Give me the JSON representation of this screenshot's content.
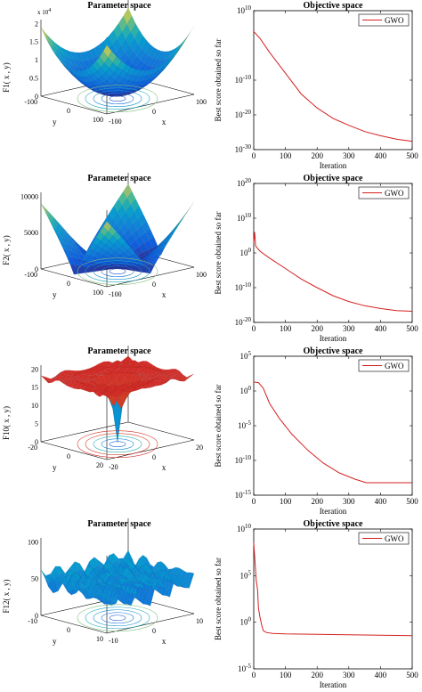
{
  "chart_data": [
    {
      "type": "surface",
      "title": "Parameter space",
      "zlabel": "F1( x , y)",
      "xlabel": "x",
      "ylabel": "y",
      "zticks": [
        "0",
        "0.5",
        "1",
        "1.5",
        "2"
      ],
      "zexp": "x 10",
      "zexp_power": "4",
      "xticks": [
        "-100",
        "0",
        "100"
      ],
      "yticks": [
        "-100",
        "0",
        "100"
      ]
    },
    {
      "type": "line",
      "title": "Objective space",
      "xlabel": "Iteration",
      "ylabel": "Best score obtained so far",
      "yscale": "log",
      "ylim_exp": [
        -30,
        10
      ],
      "ytick_exps": [
        "10",
        "-10",
        "-20",
        "-30"
      ],
      "xlim": [
        0,
        500
      ],
      "xticks": [
        "0",
        "100",
        "200",
        "300",
        "400",
        "500"
      ],
      "legend": "GWO",
      "series": [
        {
          "name": "GWO",
          "x": [
            0,
            20,
            50,
            100,
            150,
            200,
            250,
            300,
            350,
            400,
            450,
            500
          ],
          "y_exp": [
            4,
            2,
            -2,
            -8,
            -14,
            -18,
            -21,
            -23,
            -24.8,
            -26,
            -27,
            -27.6
          ]
        }
      ]
    },
    {
      "type": "surface",
      "title": "Parameter space",
      "zlabel": "F2( x , y)",
      "xlabel": "x",
      "ylabel": "y",
      "zticks": [
        "0",
        "5000",
        "10000"
      ],
      "xticks": [
        "-100",
        "0",
        "100"
      ],
      "yticks": [
        "-100",
        "0",
        "100"
      ]
    },
    {
      "type": "line",
      "title": "Objective space",
      "xlabel": "Iteration",
      "ylabel": "Best score obtained so far",
      "yscale": "log",
      "ylim_exp": [
        -20,
        20
      ],
      "ytick_exps": [
        "20",
        "10",
        "0",
        "-10",
        "-20"
      ],
      "xlim": [
        0,
        500
      ],
      "xticks": [
        "0",
        "100",
        "200",
        "300",
        "400",
        "500"
      ],
      "legend": "GWO",
      "series": [
        {
          "name": "GWO",
          "x": [
            0,
            3,
            6,
            20,
            50,
            100,
            150,
            200,
            250,
            300,
            350,
            400,
            450,
            500
          ],
          "y_exp": [
            3,
            6,
            2,
            0.5,
            -1.5,
            -4.5,
            -7.5,
            -10,
            -12.3,
            -14,
            -15.2,
            -16,
            -16.6,
            -16.8
          ]
        }
      ]
    },
    {
      "type": "surface",
      "title": "Parameter space",
      "zlabel": "F10( x , y)",
      "xlabel": "x",
      "ylabel": "y",
      "zticks": [
        "0",
        "5",
        "10",
        "15",
        "20"
      ],
      "xticks": [
        "-20",
        "0",
        "20"
      ],
      "yticks": [
        "-20",
        "0",
        "20"
      ]
    },
    {
      "type": "line",
      "title": "Objective space",
      "xlabel": "Iteration",
      "ylabel": "Best score obtained so far",
      "yscale": "log",
      "ylim_exp": [
        -15,
        5
      ],
      "ytick_exps": [
        "5",
        "0",
        "-5",
        "-10",
        "-15"
      ],
      "xlim": [
        0,
        500
      ],
      "xticks": [
        "0",
        "100",
        "200",
        "300",
        "400",
        "500"
      ],
      "legend": "GWO",
      "series": [
        {
          "name": "GWO",
          "x": [
            0,
            15,
            30,
            50,
            80,
            120,
            170,
            220,
            270,
            320,
            355,
            400,
            450,
            500
          ],
          "y_exp": [
            1.3,
            1.2,
            0.4,
            -1.8,
            -3.9,
            -6.2,
            -8.5,
            -10.4,
            -11.8,
            -12.7,
            -13.2,
            -13.2,
            -13.2,
            -13.2
          ]
        }
      ]
    },
    {
      "type": "surface",
      "title": "Parameter space",
      "zlabel": "F12( x , y)",
      "xlabel": "x",
      "ylabel": "y",
      "zticks": [
        "0",
        "50",
        "100"
      ],
      "xticks": [
        "-10",
        "0",
        "10"
      ],
      "yticks": [
        "-10",
        "0",
        "10"
      ]
    },
    {
      "type": "line",
      "title": "Objective space",
      "xlabel": "Iteration",
      "ylabel": "Best score obtained so far",
      "yscale": "log",
      "ylim_exp": [
        -5,
        10
      ],
      "ytick_exps": [
        "10",
        "5",
        "0",
        "-5"
      ],
      "xlim": [
        0,
        500
      ],
      "xticks": [
        "0",
        "100",
        "200",
        "300",
        "400",
        "500"
      ],
      "legend": "GWO",
      "series": [
        {
          "name": "GWO",
          "x": [
            0,
            3,
            8,
            12,
            15,
            20,
            25,
            30,
            40,
            60,
            100,
            200,
            300,
            400,
            500
          ],
          "y_exp": [
            8.5,
            7,
            4.5,
            3.5,
            1.5,
            0.5,
            -0.3,
            -0.9,
            -1.1,
            -1.2,
            -1.25,
            -1.3,
            -1.35,
            -1.4,
            -1.45
          ]
        }
      ]
    }
  ]
}
